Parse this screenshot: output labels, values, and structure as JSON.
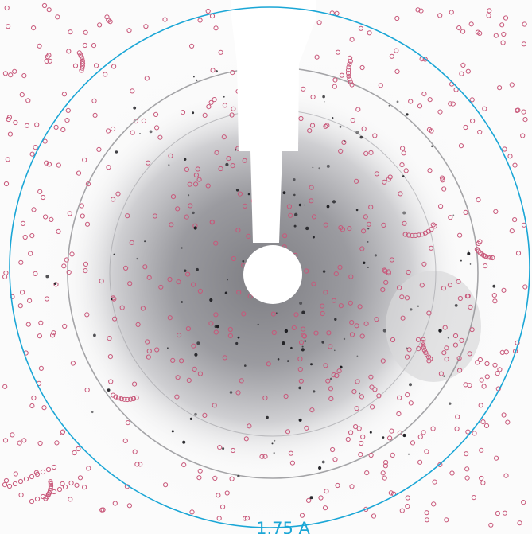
{
  "resolution_ring": {
    "label": "1.75 A",
    "color": "#1aa6d6"
  },
  "colors": {
    "background": "#fbfbfb",
    "scatter_dark": "#737377",
    "spot_ring": "#c8587a",
    "beamstop": "#ffffff"
  }
}
